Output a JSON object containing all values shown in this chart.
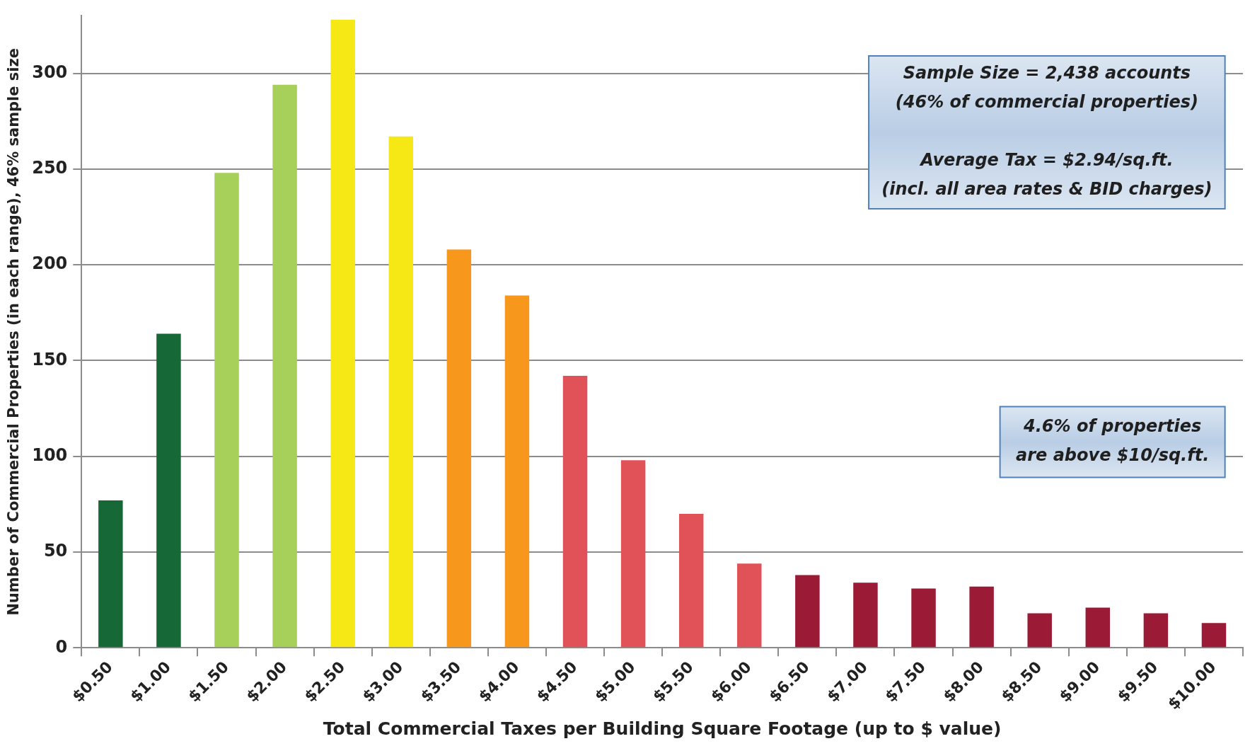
{
  "chart_data": {
    "type": "bar",
    "ylabel": "Number of Commercial Properties (in each range), 46% sample size",
    "xlabel": "Total Commercial Taxes per Building Square Footage (up to $ value)",
    "categories": [
      "$0.50",
      "$1.00",
      "$1.50",
      "$2.00",
      "$2.50",
      "$3.00",
      "$3.50",
      "$4.00",
      "$4.50",
      "$5.00",
      "$5.50",
      "$6.00",
      "$6.50",
      "$7.00",
      "$7.50",
      "$8.00",
      "$8.50",
      "$9.00",
      "$9.50",
      "$10.00"
    ],
    "values": [
      77,
      164,
      248,
      294,
      328,
      267,
      208,
      184,
      142,
      98,
      70,
      44,
      38,
      34,
      31,
      32,
      18,
      21,
      18,
      13
    ],
    "colors": [
      "#166837",
      "#166837",
      "#a6d05a",
      "#a6d05a",
      "#f5e815",
      "#f5e815",
      "#f7981d",
      "#f7981d",
      "#e05258",
      "#e05258",
      "#e05258",
      "#e05258",
      "#9b1b36",
      "#9b1b36",
      "#9b1b36",
      "#9b1b36",
      "#9b1b36",
      "#9b1b36",
      "#9b1b36",
      "#9b1b36"
    ],
    "ylim": [
      0,
      330
    ],
    "yticks": [
      0,
      50,
      100,
      150,
      200,
      250,
      300
    ],
    "grid": "y",
    "legend": false,
    "annotations": [
      "Sample Size = 2,438 accounts\n(46% of commercial properties)\n\nAverage Tax = $2.94/sq.ft.\n(incl. all area rates & BID charges)",
      "4.6% of properties\nare above $10/sq.ft."
    ]
  }
}
